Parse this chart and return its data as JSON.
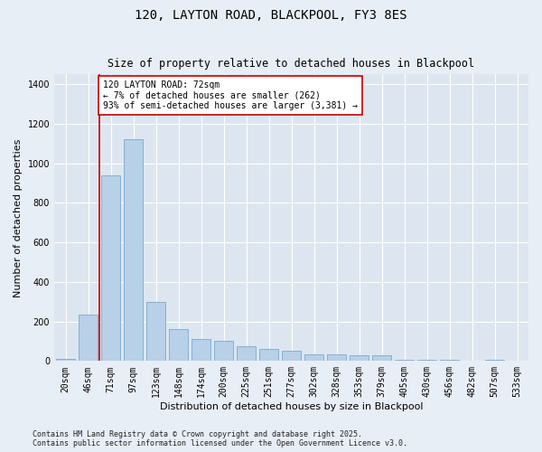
{
  "title": "120, LAYTON ROAD, BLACKPOOL, FY3 8ES",
  "subtitle": "Size of property relative to detached houses in Blackpool",
  "xlabel": "Distribution of detached houses by size in Blackpool",
  "ylabel": "Number of detached properties",
  "categories": [
    "20sqm",
    "46sqm",
    "71sqm",
    "97sqm",
    "123sqm",
    "148sqm",
    "174sqm",
    "200sqm",
    "225sqm",
    "251sqm",
    "277sqm",
    "302sqm",
    "328sqm",
    "353sqm",
    "379sqm",
    "405sqm",
    "430sqm",
    "456sqm",
    "482sqm",
    "507sqm",
    "533sqm"
  ],
  "values": [
    10,
    235,
    940,
    1120,
    300,
    160,
    110,
    100,
    75,
    62,
    50,
    35,
    35,
    30,
    28,
    4,
    4,
    4,
    0,
    6,
    3
  ],
  "bar_color": "#b8d0e8",
  "bar_edge_color": "#7aaace",
  "vline_pos": 1.5,
  "vline_color": "#cc0000",
  "annotation_text": "120 LAYTON ROAD: 72sqm\n← 7% of detached houses are smaller (262)\n93% of semi-detached houses are larger (3,381) →",
  "annotation_box_color": "#ffffff",
  "annotation_box_edge": "#cc0000",
  "ylim": [
    0,
    1450
  ],
  "yticks": [
    0,
    200,
    400,
    600,
    800,
    1000,
    1200,
    1400
  ],
  "fig_facecolor": "#e8eef6",
  "ax_facecolor": "#dde6f0",
  "grid_color": "#ffffff",
  "footer": "Contains HM Land Registry data © Crown copyright and database right 2025.\nContains public sector information licensed under the Open Government Licence v3.0.",
  "title_fontsize": 10,
  "subtitle_fontsize": 8.5,
  "axis_label_fontsize": 8,
  "tick_fontsize": 7,
  "annotation_fontsize": 7,
  "footer_fontsize": 6
}
